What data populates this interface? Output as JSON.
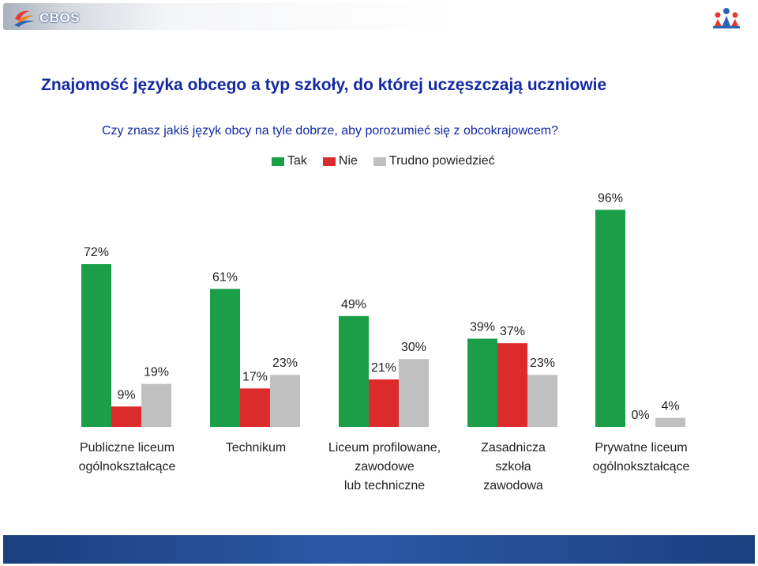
{
  "header": {
    "logo_text": "CBOS"
  },
  "chart_data": {
    "type": "bar",
    "title": "Znajomość języka obcego a typ szkoły, do której uczęszczają uczniowie",
    "subtitle": "Czy znasz jakiś język obcy na tyle dobrze, aby porozumieć się z obcokrajowcem?",
    "categories": [
      "Publiczne liceum\nogólnokształcące",
      "Technikum",
      "Liceum profilowane,\nzawodowe\nlub techniczne",
      "Zasadnicza\nszkoła\nzawodowa",
      "Prywatne liceum\nogólnokształcące"
    ],
    "series": [
      {
        "name": "Tak",
        "color": "#1b9e48",
        "values": [
          72,
          61,
          49,
          39,
          96
        ],
        "labels": [
          "72%",
          "61%",
          "49%",
          "39%",
          "96%"
        ]
      },
      {
        "name": "Nie",
        "color": "#dc2b2b",
        "values": [
          9,
          17,
          21,
          37,
          0
        ],
        "labels": [
          "9%",
          "17%",
          "21%",
          "37%",
          "0%"
        ]
      },
      {
        "name": "Trudno powiedzieć",
        "color": "#c0c0c0",
        "values": [
          19,
          23,
          30,
          23,
          4
        ],
        "labels": [
          "19%",
          "23%",
          "30%",
          "23%",
          "4%"
        ]
      }
    ],
    "ylim": [
      0,
      100
    ],
    "xlabel": "",
    "ylabel": "",
    "legend_position": "top-center"
  }
}
